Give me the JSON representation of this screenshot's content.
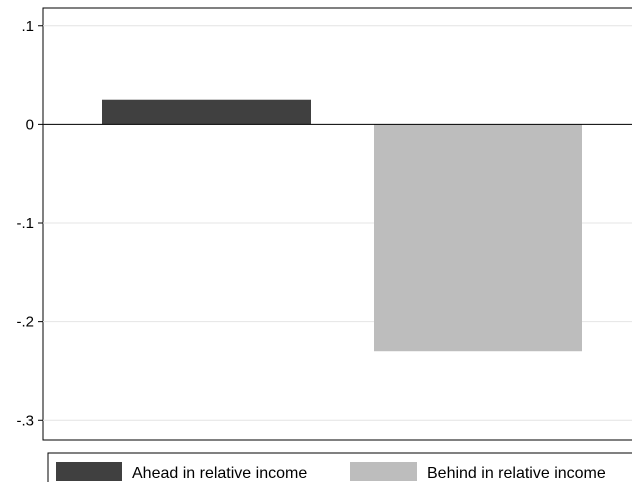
{
  "chart_data": {
    "type": "bar",
    "categories": [
      "Ahead in relative income",
      "Behind in relative income"
    ],
    "values": [
      0.025,
      -0.23
    ],
    "colors": [
      "#404040",
      "#bdbdbd"
    ],
    "ylim": [
      -0.32,
      0.118
    ],
    "yticks": [
      0.1,
      0,
      -0.1,
      -0.2,
      -0.3
    ],
    "ytick_labels": [
      ".1",
      "0",
      "-.1",
      "-.2",
      "-.3"
    ],
    "grid": true,
    "zero_line": true,
    "legend": {
      "position": "bottom",
      "entries": [
        "Ahead in relative income",
        "Behind in relative income"
      ]
    },
    "title": "",
    "xlabel": "",
    "ylabel": ""
  }
}
